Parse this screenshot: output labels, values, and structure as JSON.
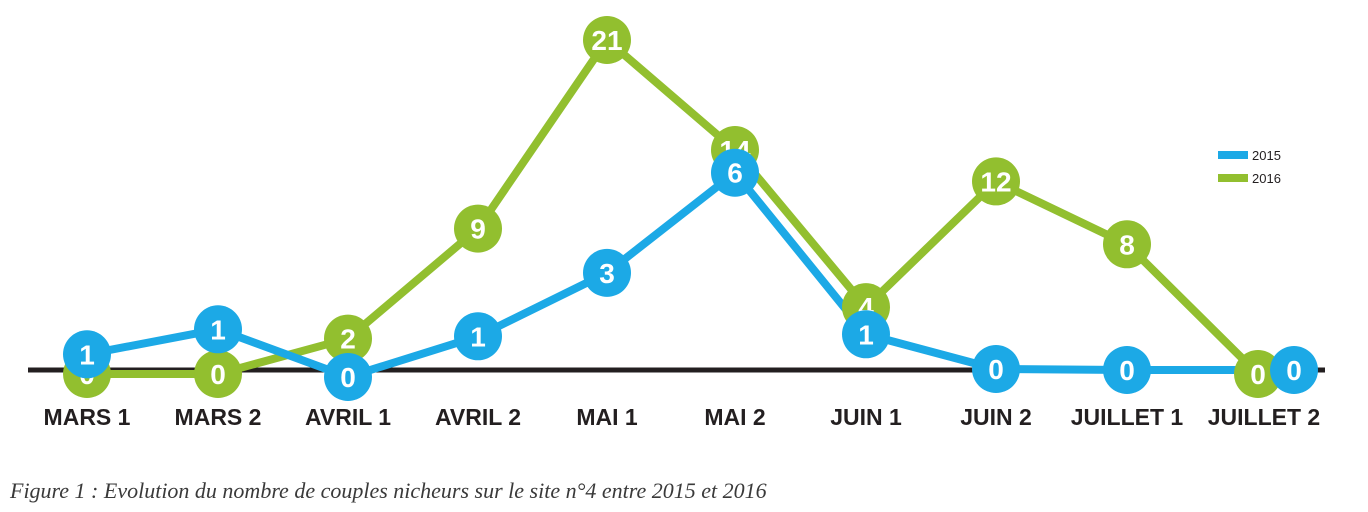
{
  "figure": {
    "caption": "Figure 1 : Evolution du nombre de couples nicheurs sur le site n°4 entre 2015 et 2016"
  },
  "chart_data": {
    "type": "line",
    "title": "",
    "xlabel": "",
    "ylabel": "",
    "categories": [
      "MARS 1",
      "MARS 2",
      "AVRIL 1",
      "AVRIL 2",
      "MAI 1",
      "MAI 2",
      "JUIN 1",
      "JUIN 2",
      "JUILLET 1",
      "JUILLET 2"
    ],
    "ylim": [
      0,
      21
    ],
    "grid": false,
    "legend_position": "right",
    "series": [
      {
        "name": "2015",
        "color": "#1ca9e6",
        "values": [
          1,
          1,
          0,
          1,
          3,
          6,
          1,
          0,
          0,
          0
        ]
      },
      {
        "name": "2016",
        "color": "#92bf2f",
        "values": [
          0,
          0,
          2,
          9,
          21,
          14,
          4,
          12,
          8,
          0
        ]
      }
    ],
    "data_labels": true,
    "axis_color": "#231f20"
  }
}
